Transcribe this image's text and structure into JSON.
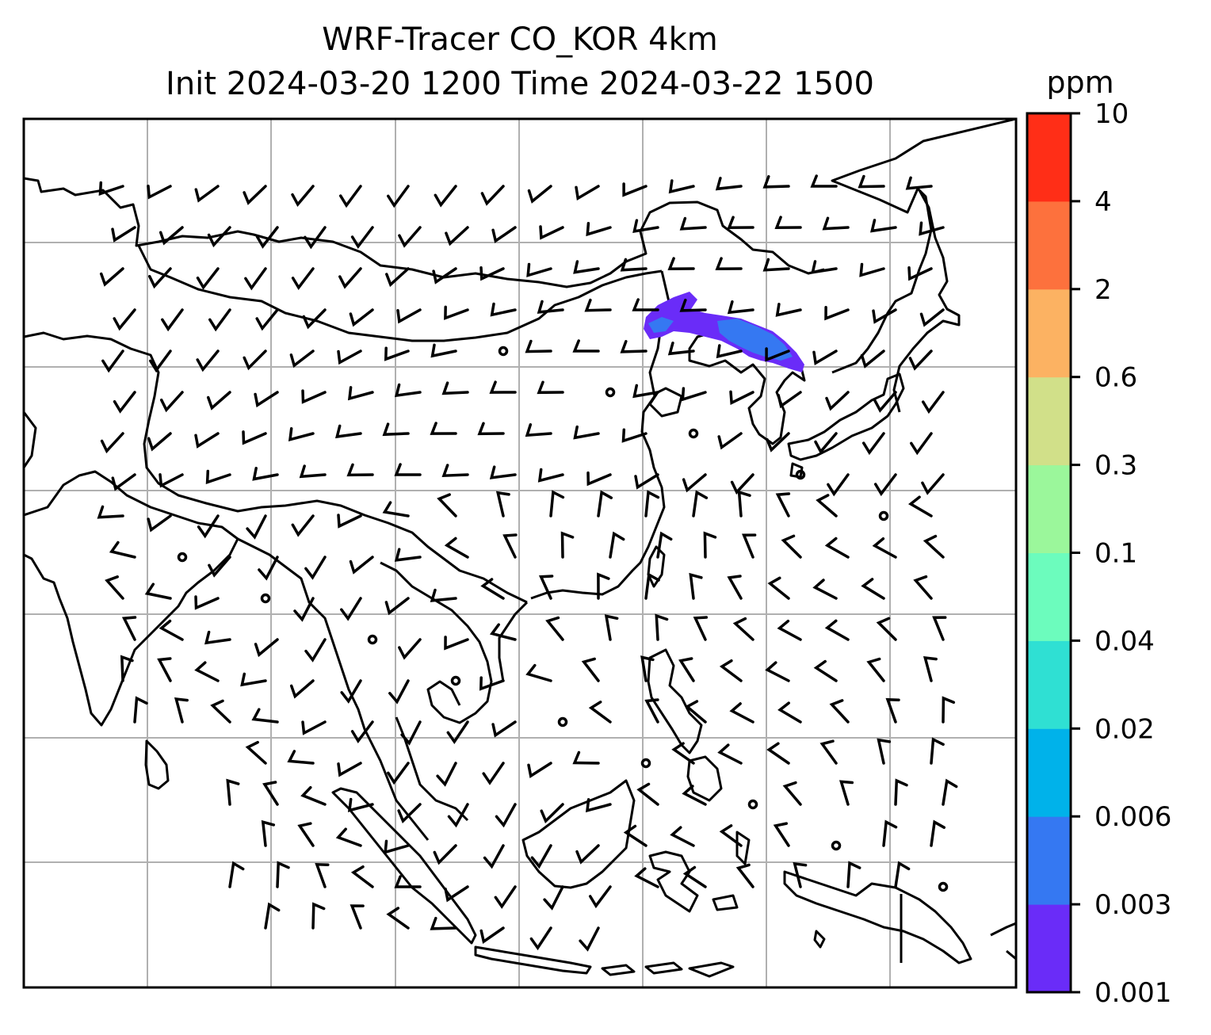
{
  "title": {
    "line1": "WRF-Tracer CO_KOR 4km",
    "line2": "Init 2024-03-20 1200 Time 2024-03-22 1500"
  },
  "colorbar": {
    "unit": "ppm",
    "levels": [
      "0.001",
      "0.003",
      "0.006",
      "0.02",
      "0.04",
      "0.1",
      "0.3",
      "0.6",
      "2",
      "4",
      "10"
    ],
    "colors": [
      "#6a2cf8",
      "#3578f2",
      "#00b2ea",
      "#2fe0d3",
      "#6cfcbd",
      "#9bf79b",
      "#d1e089",
      "#fcb262",
      "#fd713d",
      "#ff2e17"
    ]
  },
  "map": {
    "gridlines": true,
    "plume_colors": [
      "#6a2cf8",
      "#3578f2"
    ]
  }
}
